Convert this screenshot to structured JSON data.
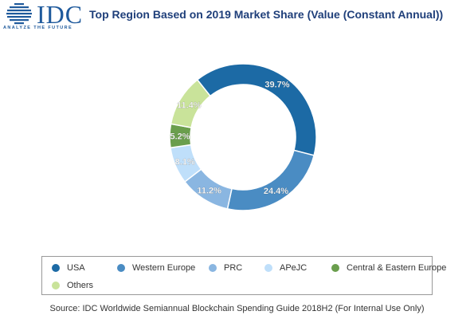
{
  "logo": {
    "text": "IDC",
    "tagline": "ANALYZE THE FUTURE",
    "color": "#1f5a9c"
  },
  "chart_data": {
    "type": "pie",
    "donut": true,
    "title": "Top Region Based on 2019 Market Share (Value (Constant Annual))",
    "categories": [
      "USA",
      "Western Europe",
      "PRC",
      "APeJC",
      "Central & Eastern Europe",
      "Others"
    ],
    "values": [
      39.7,
      24.4,
      11.2,
      8.1,
      5.2,
      11.4
    ],
    "labels": [
      "39.7%",
      "24.4%",
      "11.2%",
      "8.1%",
      "5.2%",
      "11.4%"
    ],
    "colors": [
      "#1c6aa5",
      "#4a8cc3",
      "#8ab6e1",
      "#bfdffa",
      "#6a9e4d",
      "#c9e39a"
    ],
    "legend_position": "bottom"
  },
  "source": "Source: IDC Worldwide Semiannual Blockchain Spending Guide 2018H2 (For Internal Use Only)"
}
